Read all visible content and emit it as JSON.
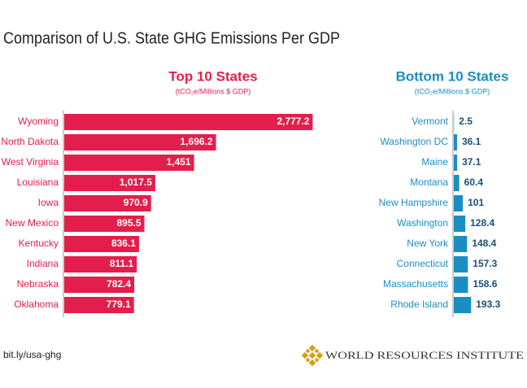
{
  "title": "Comparison of U.S. State GHG Emissions Per GDP",
  "source": "bit.ly/usa-ghg",
  "organization": "WORLD RESOURCES INSTITUTE",
  "chart_data": [
    {
      "type": "bar",
      "orientation": "horizontal",
      "title": "Top 10 States",
      "subtitle": "(tCO₂e/Millions $ GDP)",
      "color": "#e41e4c",
      "categories": [
        "Wyoming",
        "North Dakota",
        "West Virginia",
        "Louisiana",
        "Iowa",
        "New Mexico",
        "Kentucky",
        "Indiana",
        "Nebraska",
        "Oklahoma"
      ],
      "values": [
        2777.2,
        1696.2,
        1451,
        1017.5,
        970.9,
        895.5,
        836.1,
        811.1,
        782.4,
        779.1
      ],
      "value_labels": [
        "2,777.2",
        "1,696.2",
        "1,451",
        "1,017.5",
        "970.9",
        "895.5",
        "836.1",
        "811.1",
        "782.4",
        "779.1"
      ],
      "label_position": "inside"
    },
    {
      "type": "bar",
      "orientation": "horizontal",
      "title": "Bottom 10 States",
      "subtitle": "(tCO₂e/Millions $ GDP)",
      "color": "#1a8ec3",
      "categories": [
        "Vermont",
        "Washington DC",
        "Maine",
        "Montana",
        "New Hampshire",
        "Washington",
        "New York",
        "Connecticut",
        "Massachusetts",
        "Rhode Island"
      ],
      "values": [
        2.5,
        36.1,
        37.1,
        60.4,
        101,
        128.4,
        148.4,
        157.3,
        158.6,
        193.3
      ],
      "label_position": "outside"
    }
  ]
}
